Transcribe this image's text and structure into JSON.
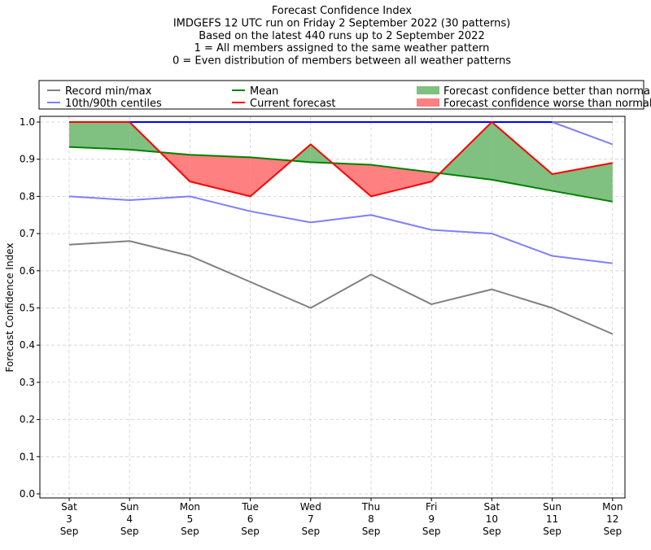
{
  "chart_data": {
    "type": "line",
    "title_lines": [
      "Forecast Confidence Index",
      "IMDGEFS 12 UTC run on Friday 2 September 2022 (30 patterns)",
      "Based on the latest 440 runs up to 2 September 2022",
      "1 = All members assigned to the same weather pattern",
      "0 = Even distribution of members between all weather patterns"
    ],
    "ylabel": "Forecast Confidence Index",
    "ylim": [
      0,
      1
    ],
    "yticks": [
      "0.0",
      "0.1",
      "0.2",
      "0.3",
      "0.4",
      "0.5",
      "0.6",
      "0.7",
      "0.8",
      "0.9",
      "1.0"
    ],
    "categories": [
      [
        "Sat",
        "3",
        "Sep"
      ],
      [
        "Sun",
        "4",
        "Sep"
      ],
      [
        "Mon",
        "5",
        "Sep"
      ],
      [
        "Tue",
        "6",
        "Sep"
      ],
      [
        "Wed",
        "7",
        "Sep"
      ],
      [
        "Thu",
        "8",
        "Sep"
      ],
      [
        "Fri",
        "9",
        "Sep"
      ],
      [
        "Sat",
        "10",
        "Sep"
      ],
      [
        "Sun",
        "11",
        "Sep"
      ],
      [
        "Mon",
        "12",
        "Sep"
      ]
    ],
    "grid": true,
    "legend_position": "top",
    "series": {
      "record_min": [
        0.67,
        0.68,
        0.64,
        0.57,
        0.5,
        0.59,
        0.51,
        0.55,
        0.5,
        0.43
      ],
      "record_max": [
        1.0,
        1.0,
        1.0,
        1.0,
        1.0,
        1.0,
        1.0,
        1.0,
        1.0,
        1.0
      ],
      "centile_10": [
        0.8,
        0.79,
        0.8,
        0.76,
        0.73,
        0.75,
        0.71,
        0.7,
        0.64,
        0.62
      ],
      "centile_90": [
        1.0,
        1.0,
        1.0,
        1.0,
        1.0,
        1.0,
        1.0,
        1.0,
        1.0,
        0.94
      ],
      "mean": [
        0.933,
        0.926,
        0.912,
        0.905,
        0.892,
        0.885,
        0.865,
        0.845,
        0.815,
        0.786
      ],
      "current": [
        1.0,
        1.0,
        0.84,
        0.8,
        0.94,
        0.8,
        0.84,
        1.0,
        0.86,
        0.89
      ]
    },
    "legend": [
      {
        "label": "Record min/max",
        "kind": "line",
        "color": "#808080"
      },
      {
        "label": "Mean",
        "kind": "line",
        "color": "#008000"
      },
      {
        "label": "Forecast confidence better than normal",
        "kind": "patch",
        "color": "#80c080"
      },
      {
        "label": "10th/90th centiles",
        "kind": "line",
        "color": "#7f7fff"
      },
      {
        "label": "Current forecast",
        "kind": "line",
        "color": "#ff0000"
      },
      {
        "label": "Forecast confidence worse than normal",
        "kind": "patch",
        "color": "#ff8080"
      }
    ],
    "colors": {
      "record": "#808080",
      "centile": "#7f7fff",
      "centile_top": "#0000ff",
      "mean": "#008000",
      "current": "#ff0000",
      "better_fill": "#80c080",
      "worse_fill": "#ff8080",
      "grid": "#d0d0d0"
    }
  }
}
